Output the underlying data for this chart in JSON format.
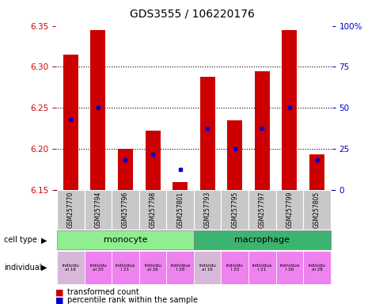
{
  "title": "GDS3555 / 106220176",
  "samples": [
    "GSM257770",
    "GSM257794",
    "GSM257796",
    "GSM257798",
    "GSM257801",
    "GSM257793",
    "GSM257795",
    "GSM257797",
    "GSM257799",
    "GSM257805"
  ],
  "bar_tops": [
    6.315,
    6.345,
    6.2,
    6.222,
    6.16,
    6.288,
    6.235,
    6.295,
    6.345,
    6.193
  ],
  "bar_bottom": 6.15,
  "percentile_values": [
    6.236,
    6.25,
    6.187,
    6.193,
    6.175,
    6.225,
    6.2,
    6.225,
    6.25,
    6.187
  ],
  "ylim_left": [
    6.15,
    6.35
  ],
  "ylim_right": [
    0,
    100
  ],
  "yticks_left": [
    6.15,
    6.2,
    6.25,
    6.3,
    6.35
  ],
  "yticks_right": [
    0,
    25,
    50,
    75,
    100
  ],
  "ytick_labels_right": [
    "0",
    "25",
    "50",
    "75",
    "100%"
  ],
  "bar_color": "#CC0000",
  "blue_color": "#0000CC",
  "left_color": "#CC0000",
  "right_color": "#0000CC",
  "legend_items": [
    "transformed count",
    "percentile rank within the sample"
  ],
  "monocyte_color": "#90EE90",
  "macrophage_color": "#3CB371",
  "indiv_colors_mono": [
    "#D8B8D8",
    "#EE82EE",
    "#EE82EE",
    "#EE82EE",
    "#EE82EE"
  ],
  "indiv_colors_macro": [
    "#D8B8D8",
    "#EE82EE",
    "#EE82EE",
    "#EE82EE",
    "#EE82EE"
  ],
  "indiv_texts": [
    "individu\nal 16",
    "individu\nal 20",
    "individua\nl 21",
    "individu\nal 26",
    "individua\nl 28",
    "individu\nal 16",
    "individu\nl 20",
    "individua\nl 21",
    "individua\nl 26",
    "individu\nal 28"
  ],
  "gray_bg": "#C8C8C8"
}
